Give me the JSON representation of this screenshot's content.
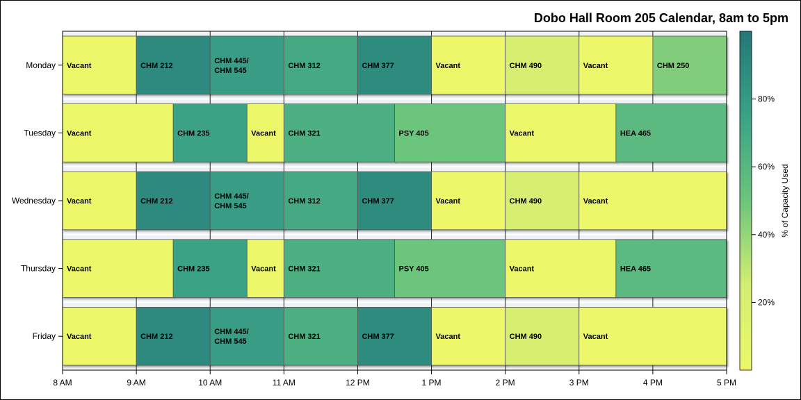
{
  "chart_data": {
    "type": "gantt-heatmap",
    "title": "Dobo Hall Room 205 Calendar, 8am to 5pm",
    "x_ticks": [
      "8 AM",
      "9 AM",
      "10 AM",
      "11 AM",
      "12 PM",
      "1 PM",
      "2 PM",
      "3 PM",
      "4 PM",
      "5 PM"
    ],
    "xlim": [
      8,
      17
    ],
    "days": [
      {
        "day": "Monday",
        "blocks": [
          {
            "label": "Vacant",
            "start": 8,
            "end": 9,
            "capacity": 0
          },
          {
            "label": "CHM 212",
            "start": 9,
            "end": 10,
            "capacity": 90
          },
          {
            "label": "CHM 445/\nCHM 545",
            "start": 10,
            "end": 11,
            "capacity": 78
          },
          {
            "label": "CHM 312",
            "start": 11,
            "end": 12,
            "capacity": 70
          },
          {
            "label": "CHM 377",
            "start": 12,
            "end": 13,
            "capacity": 88
          },
          {
            "label": "Vacant",
            "start": 13,
            "end": 14,
            "capacity": 0
          },
          {
            "label": "CHM 490",
            "start": 14,
            "end": 15,
            "capacity": 22
          },
          {
            "label": "Vacant",
            "start": 15,
            "end": 16,
            "capacity": 0
          },
          {
            "label": "CHM 250",
            "start": 16,
            "end": 17,
            "capacity": 45
          }
        ]
      },
      {
        "day": "Tuesday",
        "blocks": [
          {
            "label": "Vacant",
            "start": 8,
            "end": 9.5,
            "capacity": 0
          },
          {
            "label": "CHM 235",
            "start": 9.5,
            "end": 10.5,
            "capacity": 75
          },
          {
            "label": "Vacant",
            "start": 10.5,
            "end": 11,
            "capacity": 0
          },
          {
            "label": "CHM 321",
            "start": 11,
            "end": 12.5,
            "capacity": 65
          },
          {
            "label": "PSY 405",
            "start": 12.5,
            "end": 14,
            "capacity": 50
          },
          {
            "label": "Vacant",
            "start": 14,
            "end": 15.5,
            "capacity": 0
          },
          {
            "label": "HEA 465",
            "start": 15.5,
            "end": 17,
            "capacity": 58
          }
        ]
      },
      {
        "day": "Wednesday",
        "blocks": [
          {
            "label": "Vacant",
            "start": 8,
            "end": 9,
            "capacity": 0
          },
          {
            "label": "CHM 212",
            "start": 9,
            "end": 10,
            "capacity": 90
          },
          {
            "label": "CHM 445/\nCHM 545",
            "start": 10,
            "end": 11,
            "capacity": 78
          },
          {
            "label": "CHM 312",
            "start": 11,
            "end": 12,
            "capacity": 70
          },
          {
            "label": "CHM 377",
            "start": 12,
            "end": 13,
            "capacity": 88
          },
          {
            "label": "Vacant",
            "start": 13,
            "end": 14,
            "capacity": 0
          },
          {
            "label": "CHM 490",
            "start": 14,
            "end": 15,
            "capacity": 22
          },
          {
            "label": "Vacant",
            "start": 15,
            "end": 17,
            "capacity": 0
          }
        ]
      },
      {
        "day": "Thursday",
        "blocks": [
          {
            "label": "Vacant",
            "start": 8,
            "end": 9.5,
            "capacity": 0
          },
          {
            "label": "CHM 235",
            "start": 9.5,
            "end": 10.5,
            "capacity": 75
          },
          {
            "label": "Vacant",
            "start": 10.5,
            "end": 11,
            "capacity": 0
          },
          {
            "label": "CHM 321",
            "start": 11,
            "end": 12.5,
            "capacity": 65
          },
          {
            "label": "PSY 405",
            "start": 12.5,
            "end": 14,
            "capacity": 50
          },
          {
            "label": "Vacant",
            "start": 14,
            "end": 15.5,
            "capacity": 0
          },
          {
            "label": "HEA 465",
            "start": 15.5,
            "end": 17,
            "capacity": 58
          }
        ]
      },
      {
        "day": "Friday",
        "blocks": [
          {
            "label": "Vacant",
            "start": 8,
            "end": 9,
            "capacity": 0
          },
          {
            "label": "CHM 212",
            "start": 9,
            "end": 10,
            "capacity": 90
          },
          {
            "label": "CHM 445/\nCHM 545",
            "start": 10,
            "end": 11,
            "capacity": 78
          },
          {
            "label": "CHM 321",
            "start": 11,
            "end": 12,
            "capacity": 65
          },
          {
            "label": "CHM 377",
            "start": 12,
            "end": 13,
            "capacity": 88
          },
          {
            "label": "Vacant",
            "start": 13,
            "end": 14,
            "capacity": 0
          },
          {
            "label": "CHM 490",
            "start": 14,
            "end": 15,
            "capacity": 22
          },
          {
            "label": "Vacant",
            "start": 15,
            "end": 17,
            "capacity": 0
          }
        ]
      }
    ],
    "colorbar": {
      "label": "% of Capacity Used",
      "range": [
        0,
        100
      ],
      "ticks": [
        {
          "value": 20,
          "label": "20%"
        },
        {
          "value": 40,
          "label": "40%"
        },
        {
          "value": 60,
          "label": "60%"
        },
        {
          "value": 80,
          "label": "80%"
        }
      ],
      "stops": [
        "#ecf86a",
        "#d3ee72",
        "#6cc57d",
        "#3aa286",
        "#247878"
      ]
    },
    "grid": true
  }
}
